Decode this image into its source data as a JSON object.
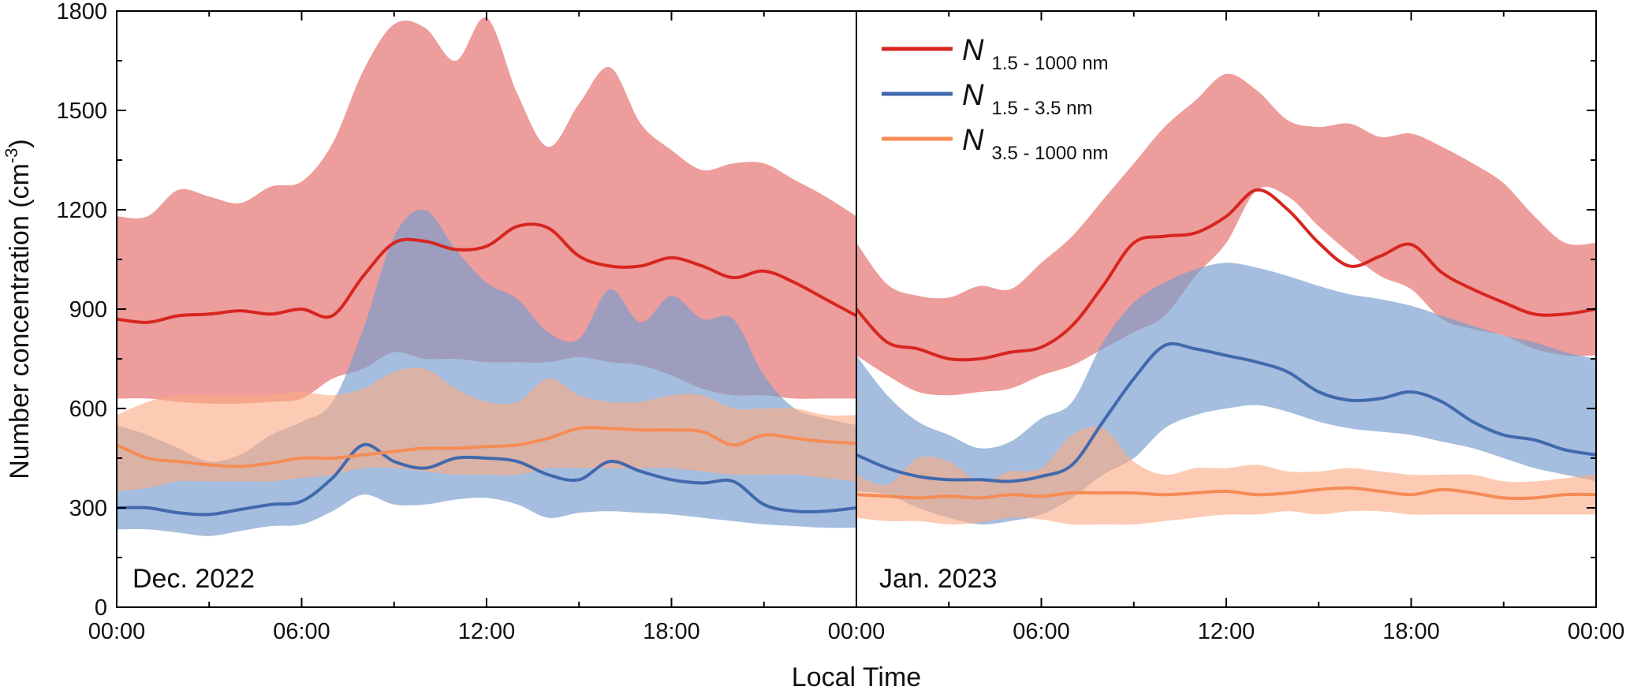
{
  "colors": {
    "n_total": "#d6261f",
    "n_small": "#4169ad",
    "n_large": "#f58b55",
    "band_total": "#e8817f",
    "band_small": "#7b9dce",
    "band_large": "#fbab85"
  },
  "chart_data": {
    "type": "area",
    "ylabel": "Number concentration (cm",
    "ylabel_sup": "-3",
    "ylabel_end": ")",
    "xlabel": "Local Time",
    "ylim": [
      0,
      1800
    ],
    "yticks": [
      "0",
      "300",
      "600",
      "900",
      "1200",
      "1500",
      "1800"
    ],
    "ytick_values": [
      0,
      300,
      600,
      900,
      1200,
      1500,
      1800
    ],
    "xticks": [
      "00:00",
      "06:00",
      "12:00",
      "18:00",
      "00:00"
    ],
    "xtick_hours": [
      0,
      6,
      12,
      18,
      24
    ],
    "xlim_hours": [
      0,
      24
    ],
    "legend_position": "top-right of panel 2",
    "legend": [
      {
        "key": "n_total",
        "symbol": "N",
        "sub": "1.5 - 1000 nm"
      },
      {
        "key": "n_small",
        "symbol": "N",
        "sub": "1.5 - 3.5 nm"
      },
      {
        "key": "n_large",
        "symbol": "N",
        "sub": "3.5 - 1000 nm"
      }
    ],
    "panels": [
      {
        "label": "Dec. 2022",
        "series": [
          {
            "key": "n_total",
            "x": [
              0,
              1,
              2,
              3,
              4,
              5,
              6,
              7,
              8,
              9,
              10,
              11,
              12,
              13,
              14,
              15,
              16,
              17,
              18,
              19,
              20,
              21,
              22,
              23,
              24
            ],
            "mean": [
              870,
              860,
              880,
              885,
              895,
              885,
              900,
              880,
              1000,
              1100,
              1105,
              1080,
              1090,
              1150,
              1145,
              1060,
              1030,
              1030,
              1055,
              1030,
              995,
              1015,
              980,
              930,
              880
            ],
            "upper": [
              1180,
              1180,
              1260,
              1240,
              1220,
              1270,
              1285,
              1400,
              1620,
              1760,
              1750,
              1650,
              1780,
              1550,
              1390,
              1520,
              1630,
              1460,
              1380,
              1320,
              1340,
              1340,
              1290,
              1240,
              1180
            ],
            "lower": [
              630,
              630,
              620,
              615,
              615,
              620,
              630,
              690,
              720,
              770,
              750,
              750,
              740,
              740,
              740,
              755,
              740,
              730,
              700,
              660,
              640,
              640,
              630,
              630,
              630
            ]
          },
          {
            "key": "n_small",
            "x": [
              0,
              1,
              2,
              3,
              4,
              5,
              6,
              7,
              8,
              9,
              10,
              11,
              12,
              13,
              14,
              15,
              16,
              17,
              18,
              19,
              20,
              21,
              22,
              23,
              24
            ],
            "mean": [
              300,
              300,
              285,
              280,
              295,
              310,
              320,
              390,
              490,
              440,
              420,
              450,
              450,
              440,
              400,
              385,
              440,
              410,
              385,
              375,
              380,
              310,
              290,
              290,
              300
            ],
            "upper": [
              550,
              520,
              480,
              440,
              460,
              520,
              560,
              620,
              840,
              1120,
              1200,
              1080,
              980,
              930,
              830,
              810,
              960,
              860,
              940,
              870,
              870,
              700,
              600,
              570,
              550
            ],
            "lower": [
              235,
              235,
              225,
              215,
              230,
              245,
              250,
              290,
              340,
              310,
              310,
              325,
              330,
              310,
              270,
              285,
              290,
              285,
              280,
              270,
              260,
              250,
              245,
              240,
              240
            ]
          },
          {
            "key": "n_large",
            "x": [
              0,
              1,
              2,
              3,
              4,
              5,
              6,
              7,
              8,
              9,
              10,
              11,
              12,
              13,
              14,
              15,
              16,
              17,
              18,
              19,
              20,
              21,
              22,
              23,
              24
            ],
            "mean": [
              490,
              450,
              440,
              430,
              425,
              435,
              450,
              450,
              460,
              470,
              480,
              480,
              485,
              490,
              510,
              540,
              540,
              535,
              535,
              530,
              490,
              520,
              510,
              500,
              495
            ],
            "upper": [
              580,
              620,
              640,
              640,
              640,
              640,
              650,
              640,
              660,
              710,
              720,
              660,
              620,
              620,
              690,
              640,
              620,
              620,
              640,
              640,
              600,
              600,
              600,
              580,
              580
            ],
            "lower": [
              350,
              360,
              380,
              380,
              380,
              380,
              390,
              400,
              420,
              420,
              410,
              400,
              400,
              400,
              420,
              420,
              420,
              420,
              420,
              410,
              400,
              400,
              400,
              390,
              380
            ]
          }
        ]
      },
      {
        "label": "Jan. 2023",
        "series": [
          {
            "key": "n_total",
            "x": [
              0,
              1,
              2,
              3,
              4,
              5,
              6,
              7,
              8,
              9,
              10,
              11,
              12,
              13,
              14,
              15,
              16,
              17,
              18,
              19,
              20,
              21,
              22,
              23,
              24
            ],
            "mean": [
              900,
              800,
              780,
              750,
              750,
              770,
              785,
              850,
              970,
              1100,
              1120,
              1130,
              1180,
              1260,
              1200,
              1100,
              1030,
              1060,
              1095,
              1010,
              960,
              920,
              885,
              885,
              900
            ],
            "upper": [
              1100,
              975,
              940,
              935,
              970,
              960,
              1040,
              1120,
              1230,
              1340,
              1450,
              1530,
              1610,
              1560,
              1470,
              1450,
              1460,
              1420,
              1430,
              1390,
              1340,
              1280,
              1180,
              1100,
              1100
            ],
            "lower": [
              760,
              700,
              650,
              640,
              650,
              660,
              700,
              730,
              780,
              830,
              880,
              1000,
              1100,
              1260,
              1240,
              1150,
              1070,
              1000,
              960,
              870,
              840,
              820,
              780,
              760,
              760
            ]
          },
          {
            "key": "n_small",
            "x": [
              0,
              1,
              2,
              3,
              4,
              5,
              6,
              7,
              8,
              9,
              10,
              11,
              12,
              13,
              14,
              15,
              16,
              17,
              18,
              19,
              20,
              21,
              22,
              23,
              24
            ],
            "mean": [
              460,
              420,
              395,
              385,
              385,
              380,
              395,
              430,
              560,
              690,
              790,
              780,
              760,
              740,
              710,
              650,
              625,
              630,
              650,
              620,
              560,
              520,
              505,
              475,
              460
            ],
            "upper": [
              760,
              640,
              560,
              520,
              480,
              500,
              570,
              620,
              800,
              920,
              980,
              1020,
              1040,
              1025,
              1000,
              970,
              945,
              930,
              910,
              880,
              850,
              820,
              800,
              770,
              750
            ],
            "lower": [
              350,
              340,
              300,
              270,
              250,
              260,
              280,
              330,
              400,
              450,
              540,
              580,
              600,
              610,
              590,
              560,
              540,
              530,
              520,
              500,
              480,
              450,
              420,
              400,
              380
            ]
          },
          {
            "key": "n_large",
            "x": [
              0,
              1,
              2,
              3,
              4,
              5,
              6,
              7,
              8,
              9,
              10,
              11,
              12,
              13,
              14,
              15,
              16,
              17,
              18,
              19,
              20,
              21,
              22,
              23,
              24
            ],
            "mean": [
              340,
              335,
              330,
              335,
              330,
              340,
              335,
              345,
              345,
              345,
              340,
              345,
              350,
              340,
              345,
              355,
              360,
              350,
              340,
              355,
              345,
              330,
              330,
              340,
              340
            ],
            "upper": [
              400,
              370,
              450,
              440,
              380,
              410,
              420,
              520,
              540,
              440,
              400,
              420,
              420,
              430,
              410,
              410,
              420,
              410,
              400,
              400,
              400,
              380,
              380,
              390,
              400
            ],
            "lower": [
              270,
              260,
              260,
              250,
              255,
              270,
              265,
              250,
              250,
              250,
              260,
              270,
              280,
              280,
              290,
              280,
              290,
              290,
              280,
              280,
              280,
              280,
              280,
              280,
              280
            ]
          }
        ]
      }
    ]
  }
}
